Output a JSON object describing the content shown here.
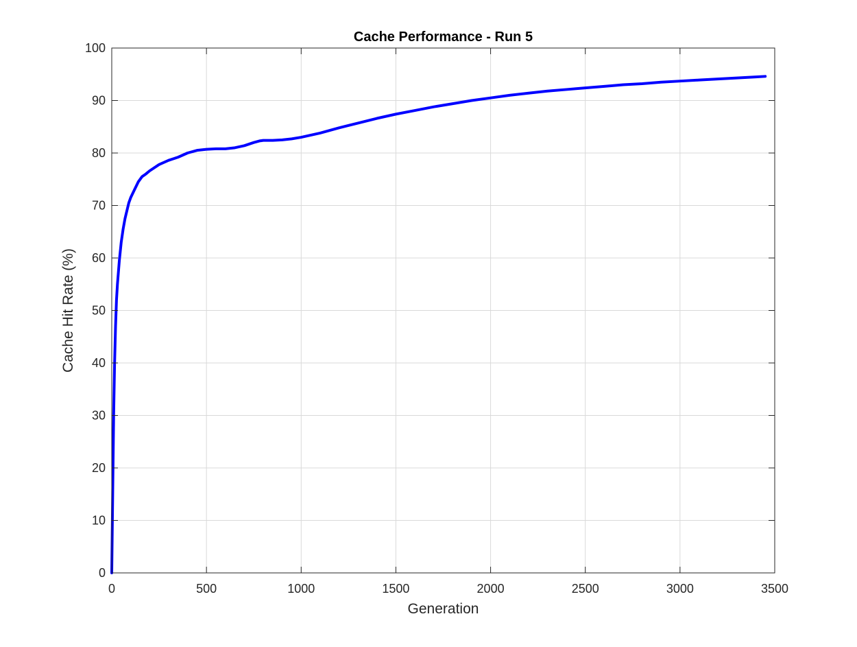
{
  "chart_data": {
    "type": "line",
    "title": "Cache Performance - Run 5",
    "xlabel": "Generation",
    "ylabel": "Cache Hit Rate (%)",
    "xlim": [
      0,
      3500
    ],
    "ylim": [
      0,
      100
    ],
    "xticks": [
      0,
      500,
      1000,
      1500,
      2000,
      2500,
      3000,
      3500
    ],
    "yticks": [
      0,
      10,
      20,
      30,
      40,
      50,
      60,
      70,
      80,
      90,
      100
    ],
    "grid": true,
    "box": true,
    "series": [
      {
        "color": "#0000ff",
        "x": [
          0,
          5,
          10,
          15,
          20,
          25,
          30,
          40,
          50,
          60,
          70,
          80,
          90,
          100,
          120,
          140,
          160,
          180,
          200,
          250,
          300,
          350,
          400,
          450,
          500,
          550,
          600,
          650,
          700,
          750,
          780,
          800,
          850,
          900,
          950,
          1000,
          1100,
          1200,
          1300,
          1400,
          1500,
          1600,
          1700,
          1800,
          1900,
          2000,
          2100,
          2200,
          2300,
          2400,
          2500,
          2600,
          2700,
          2800,
          2900,
          3000,
          3100,
          3200,
          3300,
          3400,
          3450
        ],
        "y": [
          0,
          15,
          30,
          40,
          47,
          52,
          55,
          59.5,
          63,
          65.5,
          67.5,
          69,
          70.5,
          71.5,
          73,
          74.5,
          75.5,
          76,
          76.6,
          77.8,
          78.6,
          79.2,
          80,
          80.5,
          80.7,
          80.8,
          80.8,
          81,
          81.4,
          82,
          82.3,
          82.4,
          82.4,
          82.5,
          82.7,
          83,
          83.8,
          84.8,
          85.7,
          86.6,
          87.4,
          88.1,
          88.8,
          89.4,
          90,
          90.5,
          91,
          91.4,
          91.8,
          92.1,
          92.4,
          92.7,
          93,
          93.2,
          93.5,
          93.7,
          93.9,
          94.1,
          94.3,
          94.5,
          94.6
        ]
      }
    ]
  }
}
